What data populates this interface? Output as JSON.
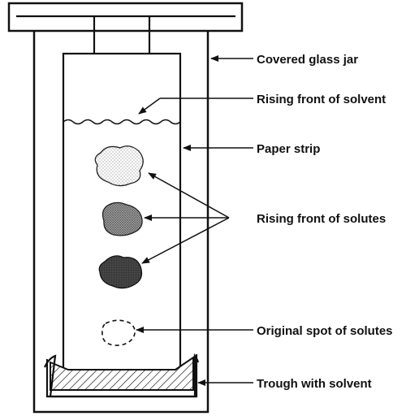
{
  "diagram": {
    "title": "",
    "labels": {
      "jar": "Covered glass jar",
      "solvent_front": "Rising front of solvent",
      "paper": "Paper strip",
      "solutes_front": "Rising front of solutes",
      "original_spot": "Original spot of solutes",
      "trough": "Trough with solvent"
    },
    "spots": [
      {
        "name": "spot-top",
        "shade": "light-stipple"
      },
      {
        "name": "spot-middle",
        "shade": "medium-stipple"
      },
      {
        "name": "spot-bottom",
        "shade": "dark-stipple"
      },
      {
        "name": "spot-original",
        "shade": "dashed-outline"
      }
    ],
    "colors": {
      "ink": "#111111",
      "background": "#ffffff"
    }
  }
}
